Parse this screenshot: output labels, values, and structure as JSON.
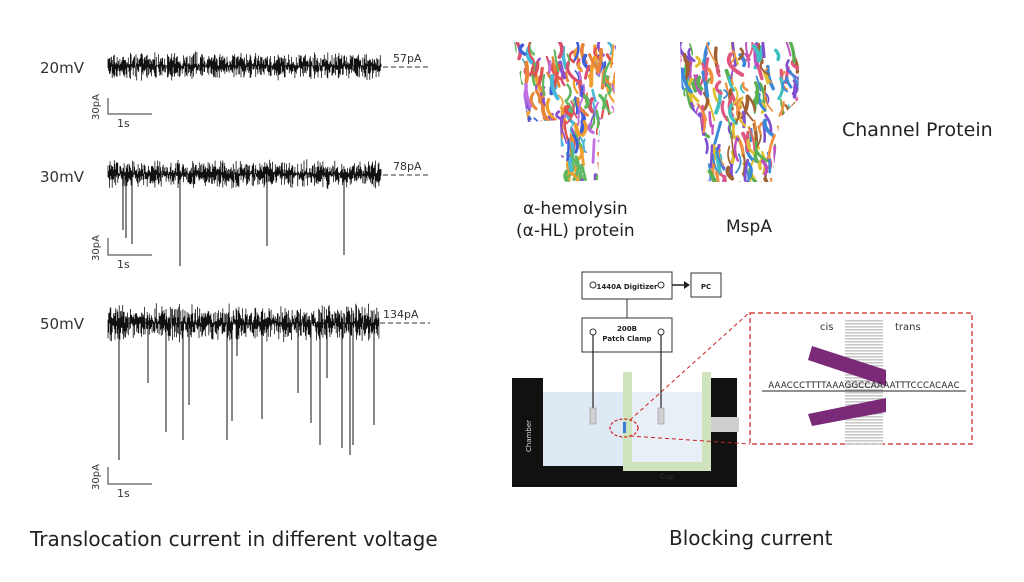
{
  "traces": [
    {
      "voltage": "20mV",
      "current_label": "57pA",
      "scale_y": "30pA",
      "scale_x": "1s"
    },
    {
      "voltage": "30mV",
      "current_label": "78pA",
      "scale_y": "30pA",
      "scale_x": "1s"
    },
    {
      "voltage": "50mV",
      "current_label": "134pA",
      "scale_y": "30pA",
      "scale_x": "1s"
    }
  ],
  "left_caption": "Translocation current in different voltage",
  "proteins": {
    "hemolysin_line1": "α-hemolysin",
    "hemolysin_line2": "(α-HL) protein",
    "mspa": "MspA",
    "group_label": "Channel Protein"
  },
  "setup": {
    "digitizer": "1440A Digitizer",
    "pc": "PC",
    "clamp_line1": "200B",
    "clamp_line2": "Patch Clamp",
    "chamber": "Chamber",
    "cup": "Cup",
    "cis": "cis",
    "trans": "trans",
    "sequence": "AAACCCTTTTAAAGGCCAAAATTTCCCACAAC"
  },
  "right_caption": "Blocking current"
}
